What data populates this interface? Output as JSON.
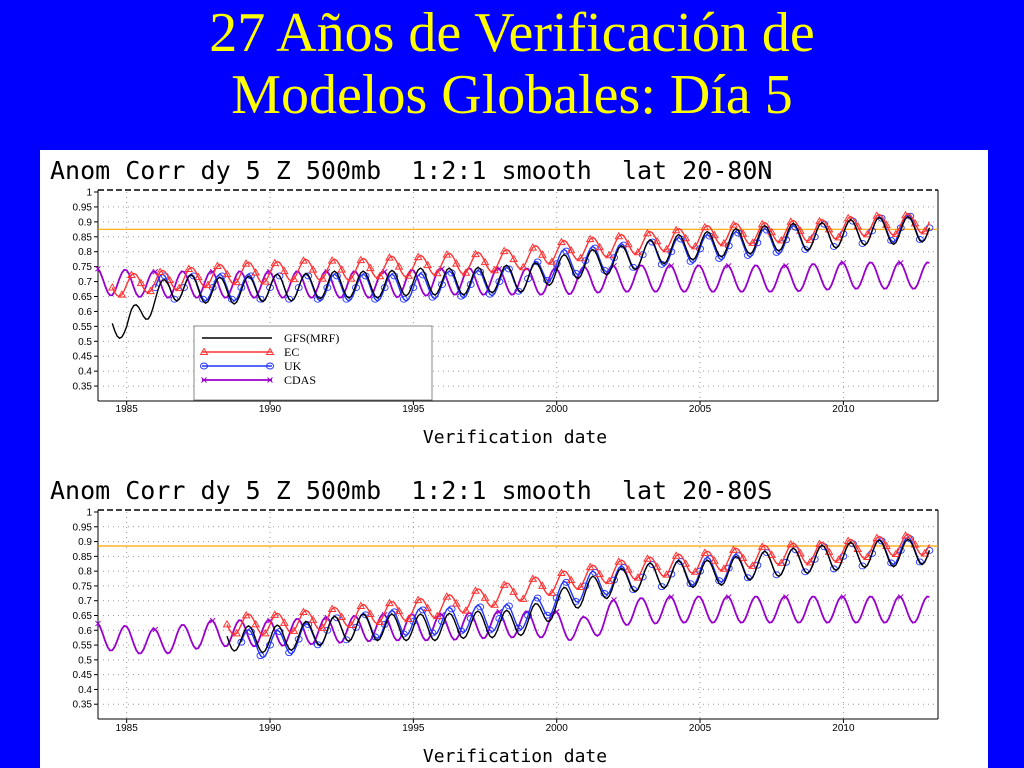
{
  "slide": {
    "title_line1": "27 Años de Verificación de",
    "title_line2": "Modelos Globales: Día 5"
  },
  "colors": {
    "background": "#0000ff",
    "title": "#ffff00",
    "reference_line": "#ffa500",
    "GFS": "#000000",
    "EC": "#ff3333",
    "UK": "#2233ff",
    "CDAS": "#9900cc"
  },
  "chart_data": [
    {
      "type": "line",
      "title": "Anom Corr dy 5 Z 500mb  1:2:1 smooth  lat 20-80N",
      "xlabel": "Verification date",
      "xlim": [
        1984.0,
        2013.3
      ],
      "ylim": [
        0.3,
        1.0
      ],
      "yticks": [
        "1",
        "0.95",
        "0.9",
        "0.85",
        "0.8",
        "0.75",
        "0.7",
        "0.65",
        "0.6",
        "0.55",
        "0.5",
        "0.45",
        "0.4",
        "0.35"
      ],
      "xticks": [
        "1985",
        "1990",
        "1995",
        "2000",
        "2005",
        "2010"
      ],
      "reference_line": 0.875,
      "grid": true,
      "legend_position": "lower-left",
      "series": [
        {
          "name": "GFS(MRF)",
          "marker": "none",
          "x": [
            1984.5,
            1985,
            1985.5,
            1986,
            1986.5,
            1987,
            1988,
            1989,
            1990,
            1991,
            1992,
            1993,
            1994,
            1995,
            1996,
            1997,
            1998,
            1999,
            2000,
            2001,
            2002,
            2003,
            2004,
            2005,
            2006,
            2007,
            2008,
            2009,
            2010,
            2011,
            2012,
            2013
          ],
          "y": [
            0.56,
            0.55,
            0.6,
            0.64,
            0.68,
            0.68,
            0.67,
            0.67,
            0.68,
            0.68,
            0.69,
            0.69,
            0.69,
            0.7,
            0.7,
            0.7,
            0.71,
            0.71,
            0.74,
            0.76,
            0.77,
            0.79,
            0.81,
            0.82,
            0.83,
            0.84,
            0.85,
            0.85,
            0.86,
            0.87,
            0.87,
            0.88
          ]
        },
        {
          "name": "EC",
          "marker": "triangle",
          "x": [
            1984.5,
            1985,
            1986,
            1987,
            1988,
            1989,
            1990,
            1991,
            1992,
            1993,
            1994,
            1995,
            1996,
            1997,
            1998,
            1999,
            2000,
            2001,
            2002,
            2003,
            2004,
            2005,
            2006,
            2007,
            2008,
            2009,
            2010,
            2011,
            2012,
            2013
          ],
          "y": [
            0.68,
            0.69,
            0.7,
            0.71,
            0.72,
            0.73,
            0.73,
            0.74,
            0.74,
            0.74,
            0.75,
            0.75,
            0.76,
            0.76,
            0.77,
            0.78,
            0.8,
            0.81,
            0.82,
            0.83,
            0.84,
            0.85,
            0.86,
            0.86,
            0.87,
            0.87,
            0.88,
            0.89,
            0.89,
            0.9
          ]
        },
        {
          "name": "UK",
          "marker": "circle",
          "x": [
            1986,
            1987,
            1988,
            1989,
            1990,
            1991,
            1992,
            1993,
            1994,
            1995,
            1996,
            1997,
            1998,
            1999,
            2000,
            2001,
            2002,
            2003,
            2004,
            2005,
            2006,
            2007,
            2008,
            2009,
            2010,
            2011,
            2012,
            2013
          ],
          "y": [
            0.68,
            0.68,
            0.68,
            0.68,
            0.68,
            0.68,
            0.68,
            0.68,
            0.68,
            0.68,
            0.69,
            0.69,
            0.7,
            0.71,
            0.76,
            0.77,
            0.78,
            0.79,
            0.8,
            0.81,
            0.82,
            0.83,
            0.84,
            0.85,
            0.86,
            0.87,
            0.88,
            0.88
          ]
        },
        {
          "name": "CDAS",
          "marker": "cross",
          "x": [
            1984,
            1986,
            1988,
            1990,
            1992,
            1994,
            1996,
            1998,
            2000,
            2002,
            2004,
            2006,
            2008,
            2010,
            2012,
            2013
          ],
          "y": [
            0.7,
            0.69,
            0.69,
            0.69,
            0.69,
            0.69,
            0.7,
            0.7,
            0.7,
            0.71,
            0.71,
            0.71,
            0.71,
            0.72,
            0.72,
            0.72
          ]
        }
      ]
    },
    {
      "type": "line",
      "title": "Anom Corr dy 5 Z 500mb  1:2:1 smooth  lat 20-80S",
      "xlabel": "Verification date",
      "xlim": [
        1984.0,
        2013.3
      ],
      "ylim": [
        0.3,
        1.0
      ],
      "yticks": [
        "1",
        "0.95",
        "0.9",
        "0.85",
        "0.8",
        "0.75",
        "0.7",
        "0.65",
        "0.6",
        "0.55",
        "0.5",
        "0.45",
        "0.4",
        "0.35"
      ],
      "xticks": [
        "1985",
        "1990",
        "1995",
        "2000",
        "2005",
        "2010"
      ],
      "reference_line": 0.885,
      "grid": true,
      "legend_position": "none",
      "series": [
        {
          "name": "GFS(MRF)",
          "marker": "none",
          "x": [
            1988.5,
            1989,
            1990,
            1991,
            1992,
            1993,
            1994,
            1995,
            1996,
            1997,
            1998,
            1999,
            2000,
            2001,
            2002,
            2003,
            2004,
            2005,
            2006,
            2007,
            2008,
            2009,
            2010,
            2011,
            2012,
            2013
          ],
          "y": [
            0.58,
            0.57,
            0.57,
            0.58,
            0.6,
            0.61,
            0.61,
            0.61,
            0.61,
            0.62,
            0.62,
            0.63,
            0.69,
            0.73,
            0.76,
            0.78,
            0.79,
            0.79,
            0.8,
            0.82,
            0.83,
            0.84,
            0.85,
            0.86,
            0.86,
            0.87
          ]
        },
        {
          "name": "EC",
          "marker": "triangle",
          "x": [
            1988.5,
            1989,
            1990,
            1991,
            1992,
            1993,
            1994,
            1995,
            1996,
            1997,
            1998,
            1999,
            2000,
            2001,
            2002,
            2003,
            2004,
            2005,
            2006,
            2007,
            2008,
            2009,
            2010,
            2011,
            2012,
            2013
          ],
          "y": [
            0.62,
            0.62,
            0.62,
            0.63,
            0.64,
            0.65,
            0.66,
            0.67,
            0.68,
            0.7,
            0.72,
            0.74,
            0.76,
            0.78,
            0.8,
            0.81,
            0.82,
            0.83,
            0.84,
            0.85,
            0.86,
            0.86,
            0.87,
            0.88,
            0.89,
            0.89
          ]
        },
        {
          "name": "UK",
          "marker": "circle",
          "x": [
            1989,
            1990,
            1991,
            1992,
            1993,
            1994,
            1995,
            1996,
            1997,
            1998,
            1999,
            2000,
            2001,
            2002,
            2003,
            2004,
            2005,
            2006,
            2007,
            2008,
            2009,
            2010,
            2011,
            2012,
            2013
          ],
          "y": [
            0.56,
            0.55,
            0.57,
            0.6,
            0.61,
            0.62,
            0.63,
            0.63,
            0.64,
            0.64,
            0.65,
            0.71,
            0.75,
            0.77,
            0.78,
            0.79,
            0.8,
            0.81,
            0.82,
            0.83,
            0.84,
            0.85,
            0.86,
            0.87,
            0.87
          ]
        },
        {
          "name": "CDAS",
          "marker": "cross",
          "x": [
            1984,
            1986,
            1988,
            1990,
            1992,
            1994,
            1996,
            1998,
            2000,
            2001,
            2002,
            2004,
            2006,
            2008,
            2010,
            2012,
            2013
          ],
          "y": [
            0.58,
            0.56,
            0.59,
            0.59,
            0.6,
            0.61,
            0.61,
            0.62,
            0.62,
            0.6,
            0.66,
            0.67,
            0.67,
            0.67,
            0.67,
            0.67,
            0.67
          ]
        }
      ]
    }
  ]
}
